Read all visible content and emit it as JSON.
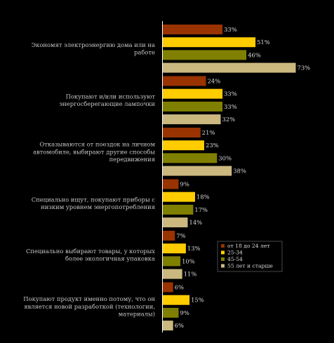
{
  "chart_data": {
    "type": "bar",
    "orientation": "horizontal",
    "categories": [
      [
        "Экономят электроэнергию дома или на",
        "работе"
      ],
      [
        "Покупают и/или используют",
        "энергосберегающие лампочки"
      ],
      [
        "Отказываются от поездок на личном",
        "автомобиле, выбирают другие способы",
        "передвижения"
      ],
      [
        "Специально ищут, покупают приборы с",
        "низким уровнем энергопотребления"
      ],
      [
        "Специально выбирают товары, у которых",
        "более экологичная упаковка"
      ],
      [
        "Покупают продукт именно потому, что он",
        "является новой разработкой (технологии,",
        "материалы)"
      ]
    ],
    "series": [
      {
        "name": "от 18 до 24 лет",
        "color": "#993300",
        "values": [
          33,
          24,
          21,
          9,
          7,
          6
        ]
      },
      {
        "name": "25-34",
        "color": "#ffcc00",
        "values": [
          51,
          33,
          23,
          18,
          13,
          15
        ]
      },
      {
        "name": "45-54",
        "color": "#808000",
        "values": [
          46,
          33,
          30,
          17,
          10,
          9
        ]
      },
      {
        "name": "55 лет и старше",
        "color": "#cbb87f",
        "values": [
          73,
          32,
          38,
          14,
          11,
          6
        ]
      }
    ],
    "value_suffix": "%",
    "xlim": [
      0,
      75
    ],
    "grid": false,
    "legend_position": "right"
  }
}
